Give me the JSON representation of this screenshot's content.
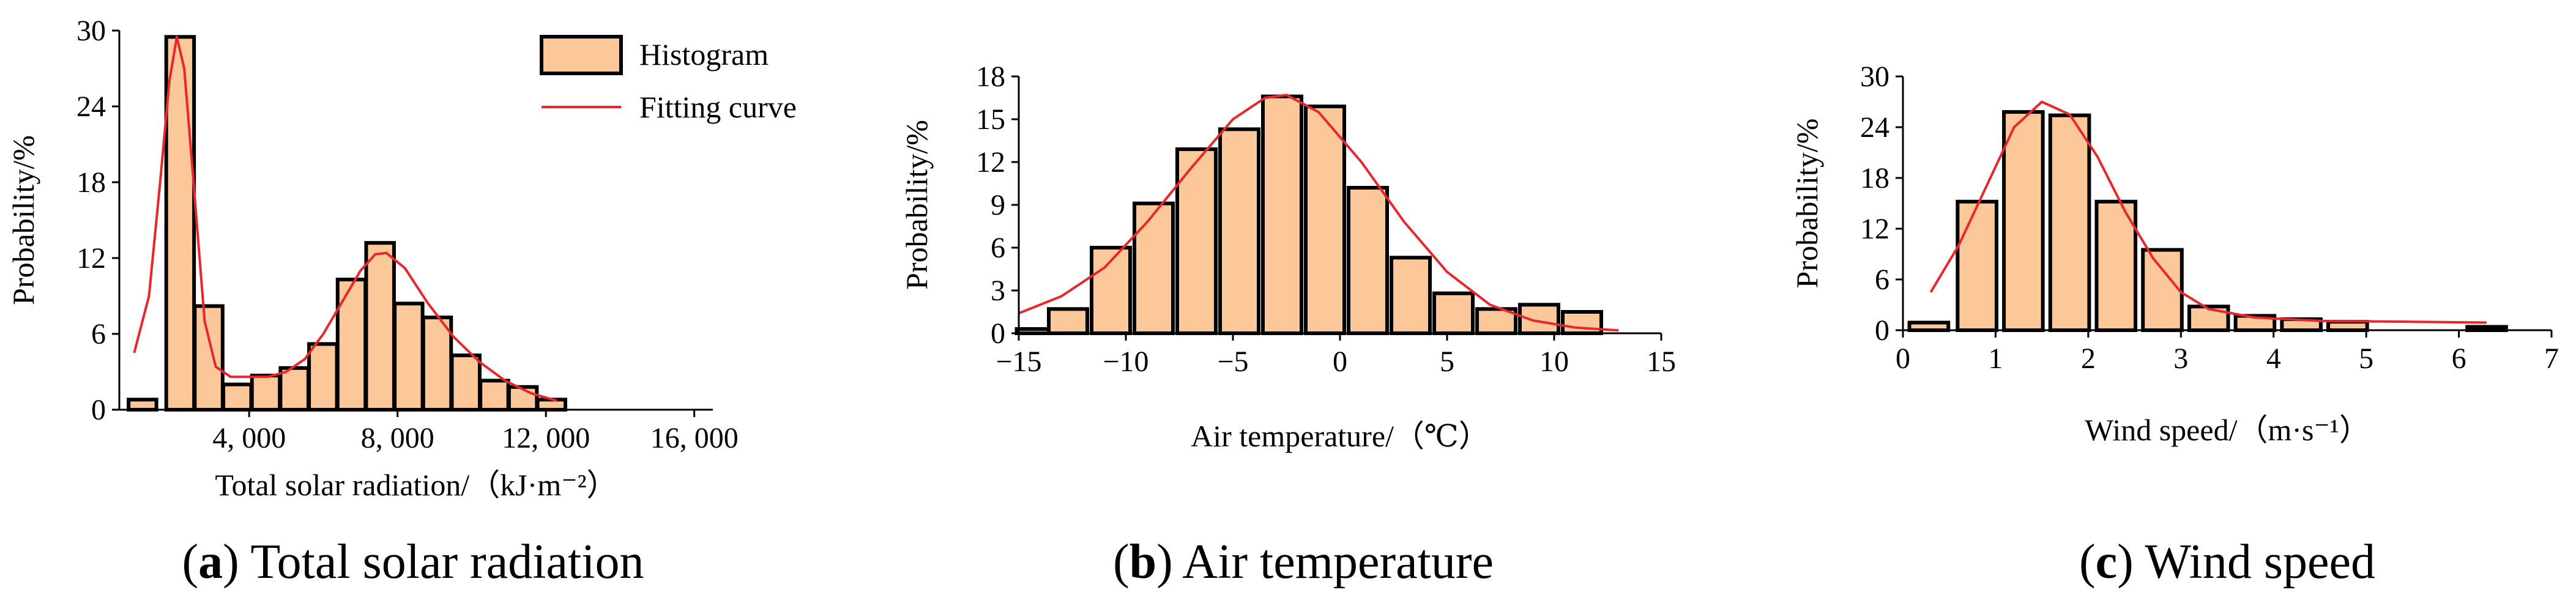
{
  "colors": {
    "bar_fill": "#FCC89A",
    "bar_stroke": "#000000",
    "curve": "#E8262B",
    "axis": "#000000"
  },
  "legend": {
    "histogram": "Histogram",
    "fitting_curve": "Fitting curve"
  },
  "chart_data": [
    {
      "id": "a",
      "type": "bar",
      "caption": {
        "letter": "a",
        "text": "Total solar radiation"
      },
      "xlabel": "Total solar radiation/（kJ·m⁻²）",
      "ylabel": "Probability/%",
      "xlim": [
        500,
        16500
      ],
      "ylim": [
        0,
        30
      ],
      "xticks": [
        4000,
        8000,
        12000,
        16000
      ],
      "xtick_labels": [
        "4, 000",
        "8, 000",
        "12, 000",
        "16, 000"
      ],
      "yticks": [
        0,
        6,
        12,
        18,
        24,
        30
      ],
      "bin_width": 750,
      "bins": [
        {
          "x": 1125,
          "value": 0.8
        },
        {
          "x": 2140,
          "value": 29.5
        },
        {
          "x": 2910,
          "value": 8.2
        },
        {
          "x": 3680,
          "value": 2.0
        },
        {
          "x": 4450,
          "value": 2.7
        },
        {
          "x": 5220,
          "value": 3.3
        },
        {
          "x": 5990,
          "value": 5.2
        },
        {
          "x": 6760,
          "value": 10.3
        },
        {
          "x": 7530,
          "value": 13.2
        },
        {
          "x": 8300,
          "value": 8.4
        },
        {
          "x": 9070,
          "value": 7.3
        },
        {
          "x": 9840,
          "value": 4.3
        },
        {
          "x": 10610,
          "value": 2.3
        },
        {
          "x": 11380,
          "value": 1.8
        },
        {
          "x": 12150,
          "value": 0.8
        }
      ],
      "curve": [
        [
          900,
          4.5
        ],
        [
          1300,
          9
        ],
        [
          1600,
          18
        ],
        [
          1850,
          26
        ],
        [
          2050,
          29.5
        ],
        [
          2250,
          27
        ],
        [
          2500,
          18
        ],
        [
          2800,
          7
        ],
        [
          3100,
          3.4
        ],
        [
          3500,
          2.6
        ],
        [
          4500,
          2.6
        ],
        [
          5000,
          3.0
        ],
        [
          5500,
          4.0
        ],
        [
          6000,
          6.0
        ],
        [
          6500,
          8.5
        ],
        [
          7000,
          11.0
        ],
        [
          7400,
          12.3
        ],
        [
          7700,
          12.4
        ],
        [
          8200,
          11.2
        ],
        [
          8800,
          8.5
        ],
        [
          9500,
          5.8
        ],
        [
          10200,
          3.8
        ],
        [
          10900,
          2.3
        ],
        [
          11600,
          1.3
        ],
        [
          12300,
          0.7
        ]
      ],
      "legend": true
    },
    {
      "id": "b",
      "type": "bar",
      "caption": {
        "letter": "b",
        "text": "Air temperature"
      },
      "xlabel": "Air temperature/（℃）",
      "ylabel": "Probability/%",
      "xlim": [
        -15,
        15
      ],
      "ylim": [
        0,
        18
      ],
      "xticks": [
        -15,
        -10,
        -5,
        0,
        5,
        10,
        15
      ],
      "xtick_labels": [
        "−15",
        "−10",
        "−5",
        "0",
        "5",
        "10",
        "15"
      ],
      "yticks": [
        0,
        3,
        6,
        9,
        12,
        15,
        18
      ],
      "bin_width": 1.8,
      "bins": [
        {
          "x": -14.2,
          "value": 0.3
        },
        {
          "x": -12.7,
          "value": 1.7
        },
        {
          "x": -10.7,
          "value": 6.0
        },
        {
          "x": -8.7,
          "value": 9.1
        },
        {
          "x": -6.7,
          "value": 12.9
        },
        {
          "x": -4.7,
          "value": 14.3
        },
        {
          "x": -2.7,
          "value": 16.6
        },
        {
          "x": -0.7,
          "value": 15.9
        },
        {
          "x": 1.3,
          "value": 10.2
        },
        {
          "x": 3.3,
          "value": 5.3
        },
        {
          "x": 5.3,
          "value": 2.8
        },
        {
          "x": 7.3,
          "value": 1.7
        },
        {
          "x": 9.3,
          "value": 2.0
        },
        {
          "x": 11.3,
          "value": 1.5
        }
      ],
      "curve": [
        [
          -15,
          1.4
        ],
        [
          -13,
          2.6
        ],
        [
          -11,
          4.6
        ],
        [
          -9,
          7.8
        ],
        [
          -7,
          11.5
        ],
        [
          -5,
          15.0
        ],
        [
          -3.5,
          16.5
        ],
        [
          -2.5,
          16.7
        ],
        [
          -1,
          15.5
        ],
        [
          1,
          12.0
        ],
        [
          3,
          7.8
        ],
        [
          5,
          4.3
        ],
        [
          7,
          2.0
        ],
        [
          9,
          0.9
        ],
        [
          11,
          0.4
        ],
        [
          13,
          0.2
        ]
      ],
      "legend": false
    },
    {
      "id": "c",
      "type": "bar",
      "caption": {
        "letter": "c",
        "text": "Wind speed"
      },
      "xlabel": "Wind speed/（m·s⁻¹）",
      "ylabel": "Probability/%",
      "xlim": [
        0,
        7
      ],
      "ylim": [
        0,
        30
      ],
      "xticks": [
        0,
        1,
        2,
        3,
        4,
        5,
        6,
        7
      ],
      "xtick_labels": [
        "0",
        "1",
        "2",
        "3",
        "4",
        "5",
        "6",
        "7"
      ],
      "yticks": [
        0,
        6,
        12,
        18,
        24,
        30
      ],
      "bin_width": 0.42,
      "bins": [
        {
          "x": 0.28,
          "value": 0.9
        },
        {
          "x": 0.8,
          "value": 15.2
        },
        {
          "x": 1.3,
          "value": 25.8
        },
        {
          "x": 1.8,
          "value": 25.4
        },
        {
          "x": 2.3,
          "value": 15.2
        },
        {
          "x": 2.8,
          "value": 9.5
        },
        {
          "x": 3.3,
          "value": 2.8
        },
        {
          "x": 3.8,
          "value": 1.7
        },
        {
          "x": 4.3,
          "value": 1.3
        },
        {
          "x": 4.8,
          "value": 1.0
        },
        {
          "x": 6.3,
          "value": 0.4
        }
      ],
      "curve": [
        [
          0.3,
          4.5
        ],
        [
          0.6,
          10
        ],
        [
          0.9,
          17
        ],
        [
          1.2,
          24
        ],
        [
          1.5,
          27.0
        ],
        [
          1.8,
          25.5
        ],
        [
          2.1,
          20.5
        ],
        [
          2.4,
          14
        ],
        [
          2.7,
          8.5
        ],
        [
          3.0,
          4.5
        ],
        [
          3.3,
          2.5
        ],
        [
          3.8,
          1.5
        ],
        [
          4.5,
          1.1
        ],
        [
          5.5,
          1.0
        ],
        [
          6.3,
          0.9
        ]
      ],
      "legend": false
    }
  ]
}
